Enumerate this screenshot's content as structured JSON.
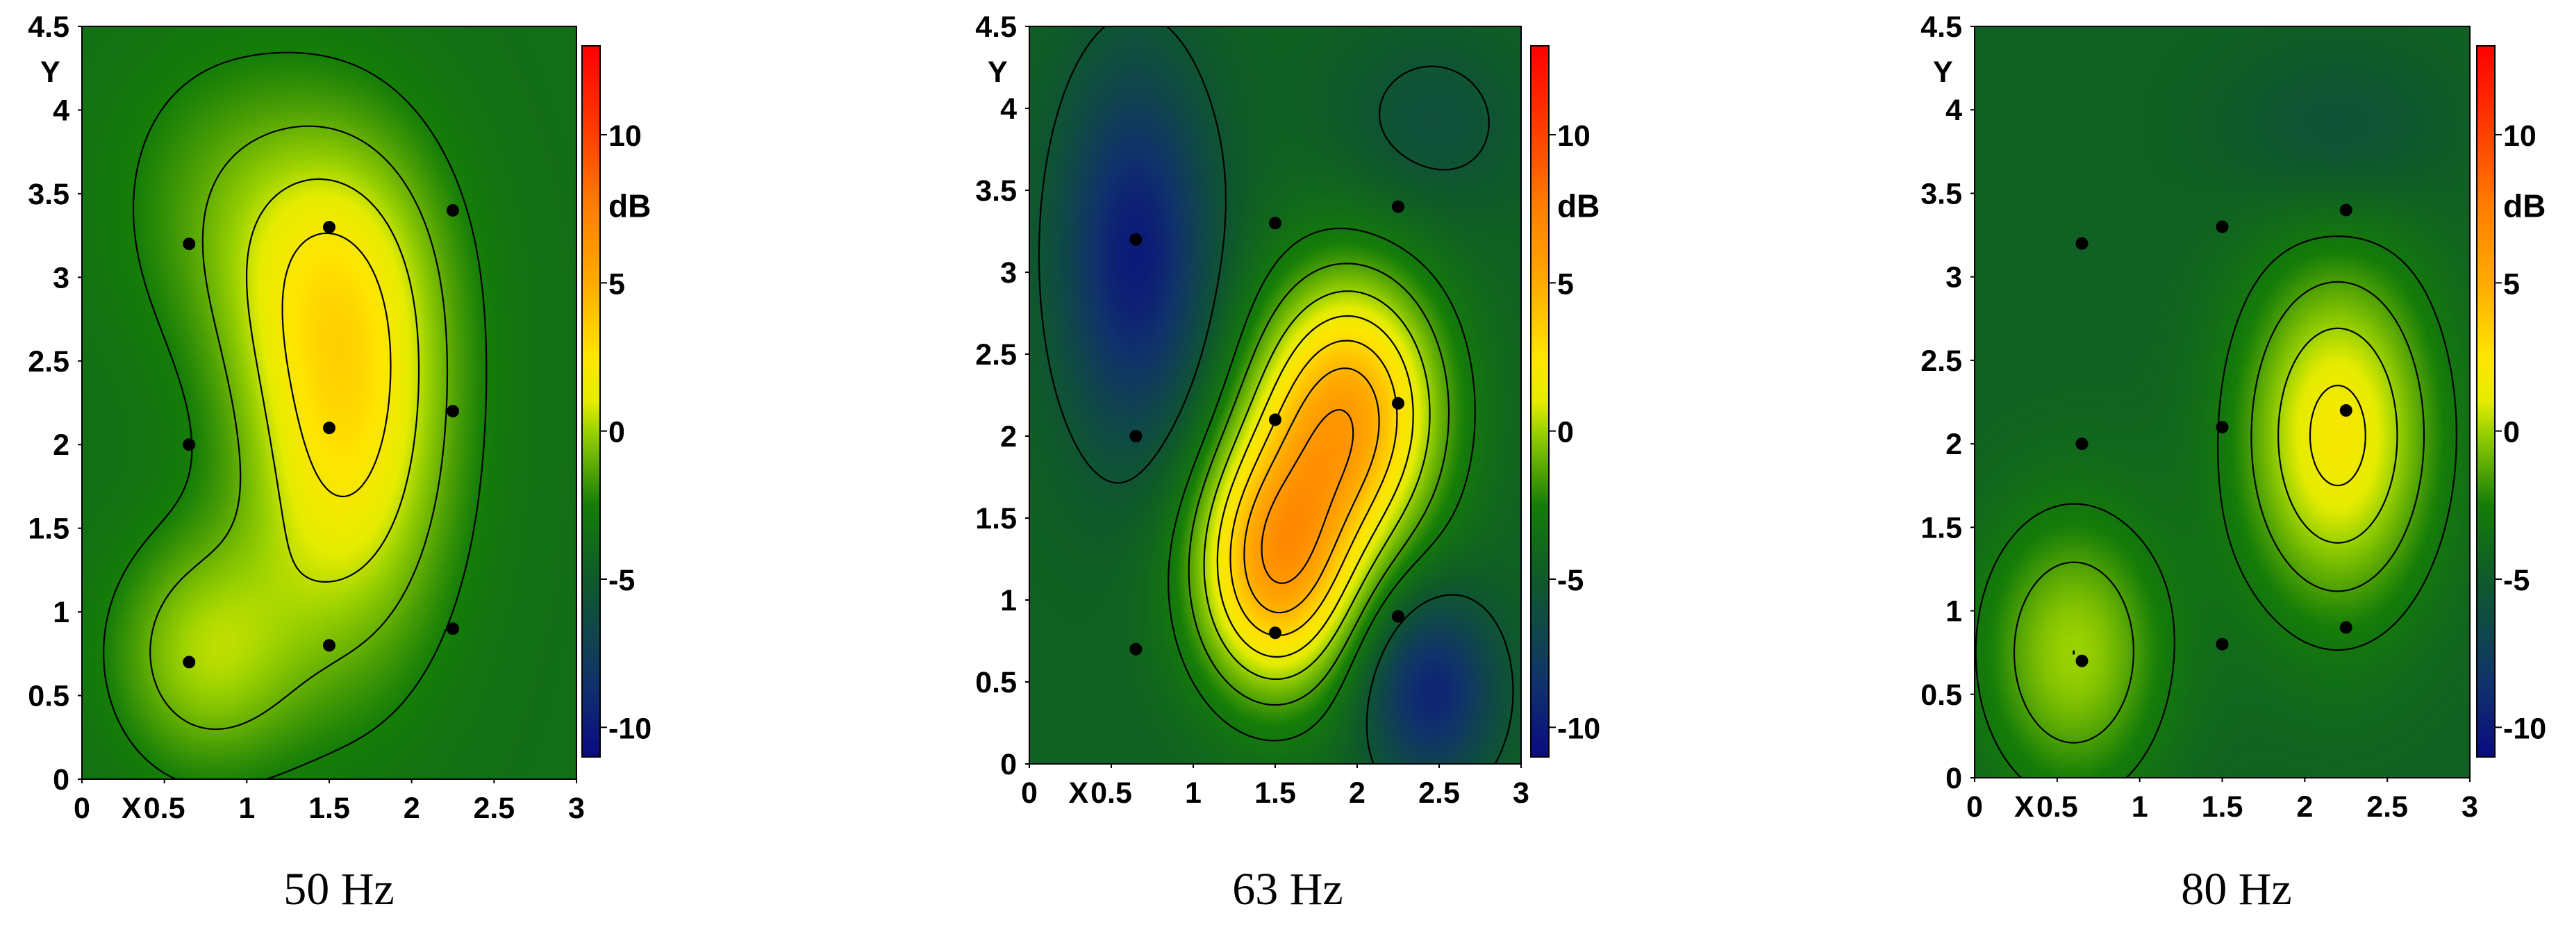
{
  "chart_data": [
    {
      "type": "heatmap",
      "title": "50 Hz",
      "xlabel": "X",
      "ylabel": "Y",
      "colorbar_label": "dB",
      "xlim": [
        0,
        3
      ],
      "ylim": [
        0,
        4.5
      ],
      "x_ticks": [
        "0",
        "0.5",
        "1",
        "1.5",
        "2",
        "2.5",
        "3"
      ],
      "y_ticks": [
        "0",
        "0.5",
        "1",
        "1.5",
        "2",
        "2.5",
        "3",
        "3.5",
        "4",
        "4.5"
      ],
      "colorbar_range": [
        -11,
        13
      ],
      "colorbar_ticks": [
        "10",
        "5",
        "0",
        "-5",
        "-10"
      ],
      "measurement_points": [
        {
          "x": 0.65,
          "y": 0.7
        },
        {
          "x": 0.65,
          "y": 2.0
        },
        {
          "x": 0.65,
          "y": 3.2
        },
        {
          "x": 1.5,
          "y": 0.8
        },
        {
          "x": 1.5,
          "y": 2.1
        },
        {
          "x": 1.5,
          "y": 3.3
        },
        {
          "x": 2.25,
          "y": 0.9
        },
        {
          "x": 2.25,
          "y": 2.2
        },
        {
          "x": 2.25,
          "y": 3.4
        }
      ],
      "field": {
        "base": -3.6,
        "peaks": [
          {
            "x": 1.6,
            "y": 2.15,
            "sx": 0.45,
            "sy": 1.0,
            "a": 6.0
          },
          {
            "x": 1.45,
            "y": 3.1,
            "sx": 0.5,
            "sy": 0.6,
            "a": 2.0
          },
          {
            "x": 0.75,
            "y": 0.75,
            "sx": 0.4,
            "sy": 0.5,
            "a": 3.6
          },
          {
            "x": 0.8,
            "y": 3.5,
            "sx": 0.5,
            "sy": 0.7,
            "a": 1.5
          }
        ]
      },
      "contour_levels": [
        -2.5,
        -1,
        0.5,
        2,
        3.5
      ]
    },
    {
      "type": "heatmap",
      "title": "63 Hz",
      "xlabel": "X",
      "ylabel": "Y",
      "colorbar_label": "dB",
      "xlim": [
        0,
        3
      ],
      "ylim": [
        0,
        4.5
      ],
      "x_ticks": [
        "0",
        "0.5",
        "1",
        "1.5",
        "2",
        "2.5",
        "3"
      ],
      "y_ticks": [
        "0",
        "0.5",
        "1",
        "1.5",
        "2",
        "2.5",
        "3",
        "3.5",
        "4",
        "4.5"
      ],
      "colorbar_range": [
        -11,
        13
      ],
      "colorbar_ticks": [
        "10",
        "5",
        "0",
        "-5",
        "-10"
      ],
      "measurement_points": [
        {
          "x": 0.65,
          "y": 0.7
        },
        {
          "x": 0.65,
          "y": 2.0
        },
        {
          "x": 0.65,
          "y": 3.2
        },
        {
          "x": 1.5,
          "y": 0.8
        },
        {
          "x": 1.5,
          "y": 2.1
        },
        {
          "x": 1.5,
          "y": 3.3
        },
        {
          "x": 2.25,
          "y": 0.9
        },
        {
          "x": 2.25,
          "y": 2.2
        },
        {
          "x": 2.25,
          "y": 3.4
        }
      ],
      "field": {
        "base": -4.5,
        "peaks": [
          {
            "x": 1.95,
            "y": 2.15,
            "sx": 0.4,
            "sy": 0.6,
            "a": 9.5
          },
          {
            "x": 1.5,
            "y": 1.2,
            "sx": 0.35,
            "sy": 0.55,
            "a": 9.5
          },
          {
            "x": 0.65,
            "y": 3.1,
            "sx": 0.32,
            "sy": 0.8,
            "a": -5.5
          },
          {
            "x": 2.45,
            "y": 0.45,
            "sx": 0.28,
            "sy": 0.4,
            "a": -5.0
          },
          {
            "x": 2.45,
            "y": 3.9,
            "sx": 0.4,
            "sy": 0.4,
            "a": -1.5
          }
        ]
      },
      "contour_levels": [
        -5.5,
        -3,
        -1.5,
        0,
        1.5,
        3,
        4.5,
        6
      ]
    },
    {
      "type": "heatmap",
      "title": "80 Hz",
      "xlabel": "X",
      "ylabel": "Y",
      "colorbar_label": "dB",
      "xlim": [
        0,
        3
      ],
      "ylim": [
        0,
        4.5
      ],
      "x_ticks": [
        "0",
        "0.5",
        "1",
        "1.5",
        "2",
        "2.5",
        "3"
      ],
      "y_ticks": [
        "0",
        "0.5",
        "1",
        "1.5",
        "2",
        "2.5",
        "3",
        "3.5",
        "4",
        "4.5"
      ],
      "colorbar_range": [
        -11,
        13
      ],
      "colorbar_ticks": [
        "10",
        "5",
        "0",
        "-5",
        "-10"
      ],
      "measurement_points": [
        {
          "x": 0.65,
          "y": 0.7
        },
        {
          "x": 0.65,
          "y": 2.0
        },
        {
          "x": 0.65,
          "y": 3.2
        },
        {
          "x": 1.5,
          "y": 0.8
        },
        {
          "x": 1.5,
          "y": 2.1
        },
        {
          "x": 1.5,
          "y": 3.3
        },
        {
          "x": 2.25,
          "y": 0.9
        },
        {
          "x": 2.25,
          "y": 2.2
        },
        {
          "x": 2.25,
          "y": 3.4
        }
      ],
      "field": {
        "base": -4.5,
        "peaks": [
          {
            "x": 2.2,
            "y": 2.05,
            "sx": 0.42,
            "sy": 0.75,
            "a": 6.5
          },
          {
            "x": 0.6,
            "y": 0.75,
            "sx": 0.4,
            "sy": 0.6,
            "a": 4.5
          },
          {
            "x": 2.2,
            "y": 3.85,
            "sx": 0.45,
            "sy": 0.35,
            "a": -1.5
          }
        ]
      },
      "contour_levels": [
        -3,
        -1.5,
        0,
        1.5
      ]
    }
  ]
}
